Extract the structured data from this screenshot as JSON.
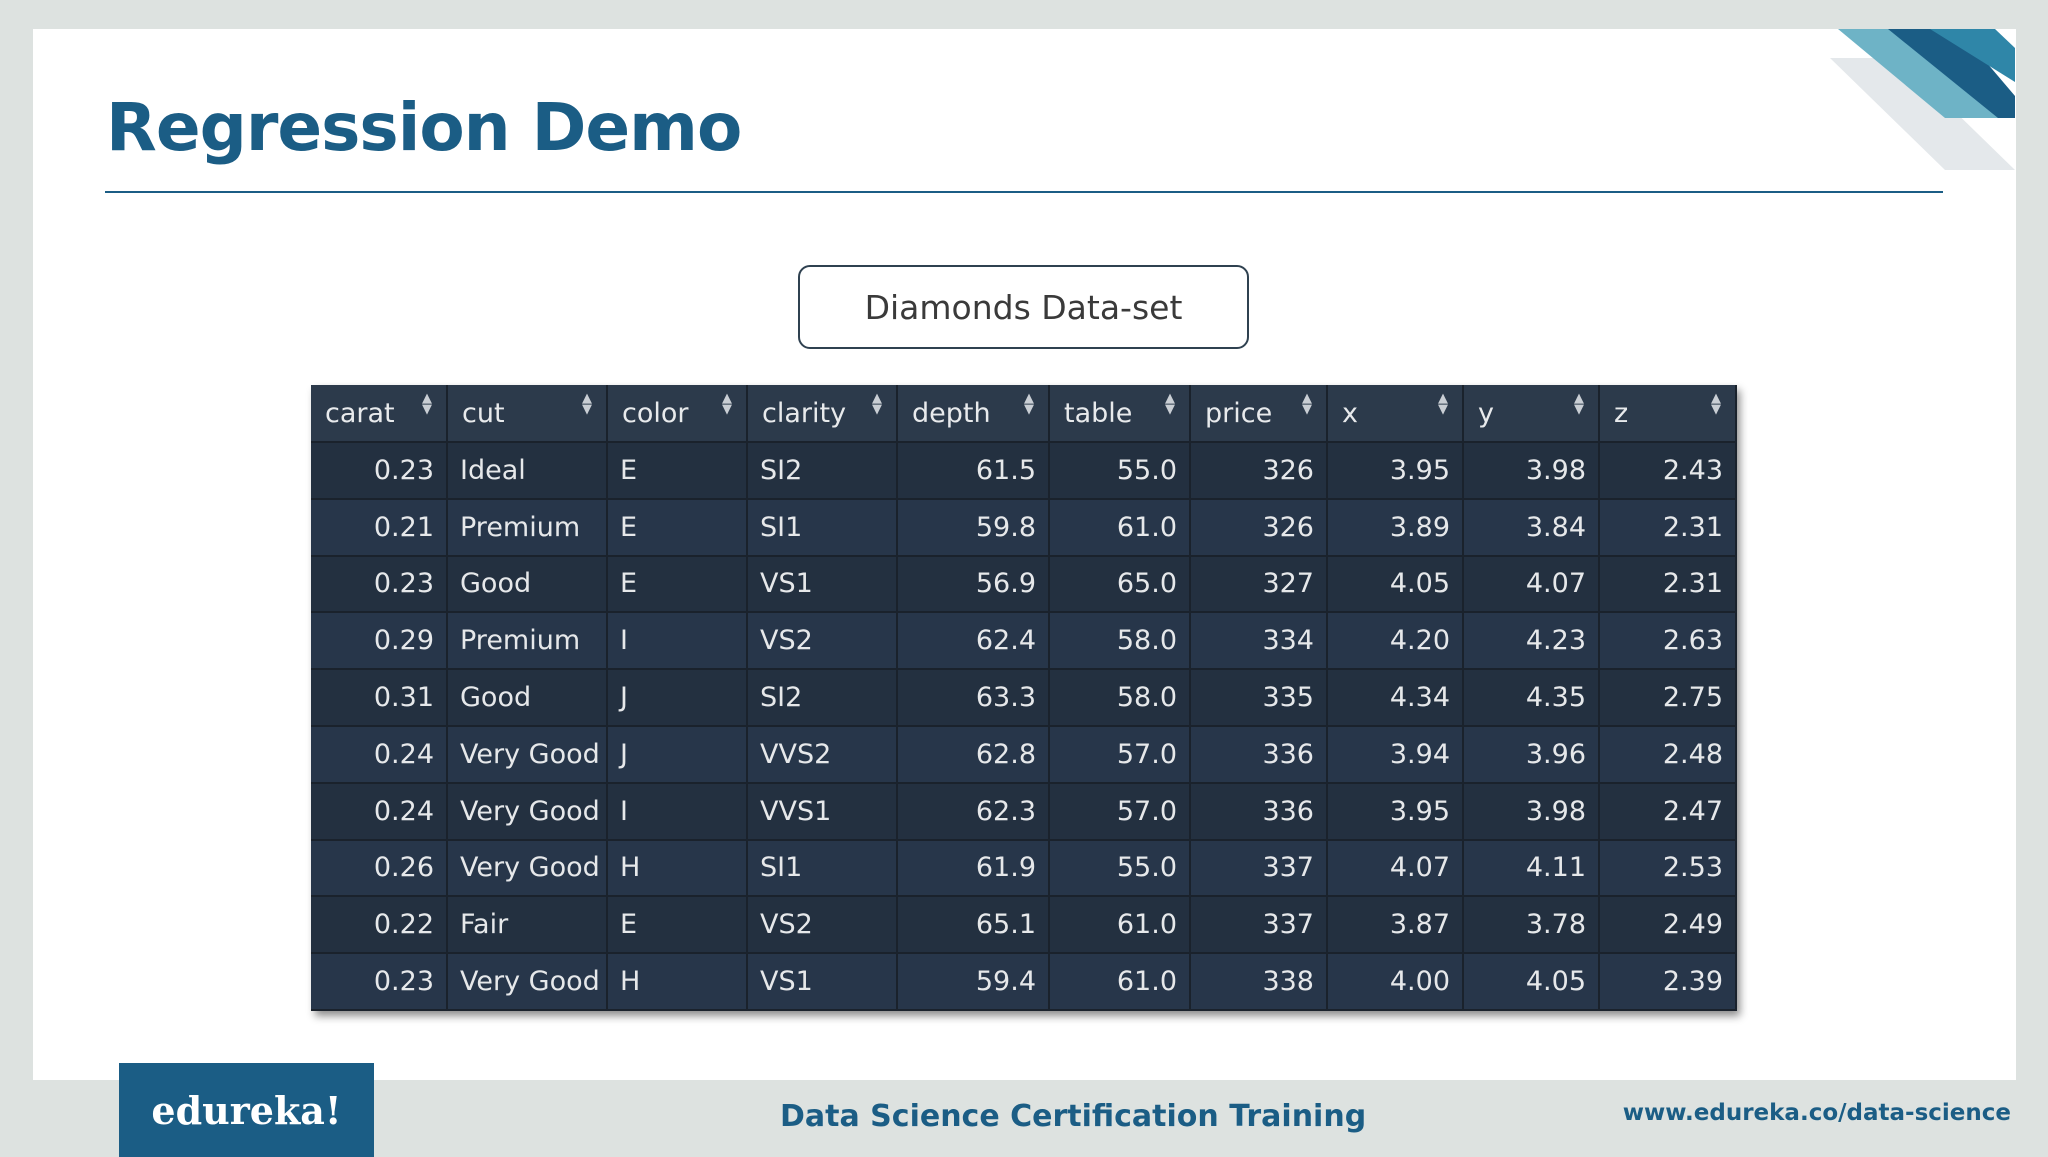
{
  "slide": {
    "title": "Regression Demo",
    "dataset_label": "Diamonds Data-set"
  },
  "table": {
    "columns": [
      "carat",
      "cut",
      "color",
      "clarity",
      "depth",
      "table",
      "price",
      "x",
      "y",
      "z"
    ],
    "rows": [
      [
        "0.23",
        "Ideal",
        "E",
        "SI2",
        "61.5",
        "55.0",
        "326",
        "3.95",
        "3.98",
        "2.43"
      ],
      [
        "0.21",
        "Premium",
        "E",
        "SI1",
        "59.8",
        "61.0",
        "326",
        "3.89",
        "3.84",
        "2.31"
      ],
      [
        "0.23",
        "Good",
        "E",
        "VS1",
        "56.9",
        "65.0",
        "327",
        "4.05",
        "4.07",
        "2.31"
      ],
      [
        "0.29",
        "Premium",
        "I",
        "VS2",
        "62.4",
        "58.0",
        "334",
        "4.20",
        "4.23",
        "2.63"
      ],
      [
        "0.31",
        "Good",
        "J",
        "SI2",
        "63.3",
        "58.0",
        "335",
        "4.34",
        "4.35",
        "2.75"
      ],
      [
        "0.24",
        "Very Good",
        "J",
        "VVS2",
        "62.8",
        "57.0",
        "336",
        "3.94",
        "3.96",
        "2.48"
      ],
      [
        "0.24",
        "Very Good",
        "I",
        "VVS1",
        "62.3",
        "57.0",
        "336",
        "3.95",
        "3.98",
        "2.47"
      ],
      [
        "0.26",
        "Very Good",
        "H",
        "SI1",
        "61.9",
        "55.0",
        "337",
        "4.07",
        "4.11",
        "2.53"
      ],
      [
        "0.22",
        "Fair",
        "E",
        "VS2",
        "65.1",
        "61.0",
        "337",
        "3.87",
        "3.78",
        "2.49"
      ],
      [
        "0.23",
        "Very Good",
        "H",
        "VS1",
        "59.4",
        "61.0",
        "338",
        "4.00",
        "4.05",
        "2.39"
      ]
    ]
  },
  "footer": {
    "logo_text": "edureka!",
    "course_title": "Data Science Certification Training",
    "website": "www.edureka.co/data-science"
  },
  "colors": {
    "brand_blue": "#1b5d85",
    "table_bg": "#222d3b",
    "header_bg": "#2c3a4b",
    "footer_bg": "#dde2e0"
  }
}
